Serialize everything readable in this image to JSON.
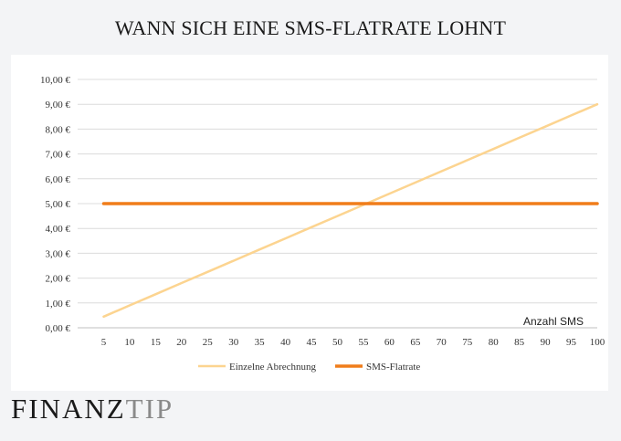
{
  "title": "WANN SICH EINE SMS-FLATRATE LOHNT",
  "brand": {
    "part1": "FINANZ",
    "part2": "TIP"
  },
  "chart_data": {
    "type": "line",
    "xlabel": "Anzahl SMS",
    "ylabel": "",
    "x": [
      5,
      10,
      15,
      20,
      25,
      30,
      35,
      40,
      45,
      50,
      55,
      60,
      65,
      70,
      75,
      80,
      85,
      90,
      95,
      100
    ],
    "xlim": [
      5,
      100
    ],
    "ylim": [
      0,
      10
    ],
    "yticks": [
      "0,00 €",
      "1,00 €",
      "2,00 €",
      "3,00 €",
      "4,00 €",
      "5,00 €",
      "6,00 €",
      "7,00 €",
      "8,00 €",
      "9,00 €",
      "10,00 €"
    ],
    "grid": true,
    "legend_position": "bottom",
    "series": [
      {
        "name": "Einzelne Abrechnung",
        "color": "#fcd490",
        "values": [
          0.45,
          0.9,
          1.35,
          1.8,
          2.25,
          2.7,
          3.15,
          3.6,
          4.05,
          4.5,
          4.95,
          5.4,
          5.85,
          6.3,
          6.75,
          7.2,
          7.65,
          8.1,
          8.55,
          9.0
        ]
      },
      {
        "name": "SMS-Flatrate",
        "color": "#f07d1a",
        "values": [
          5,
          5,
          5,
          5,
          5,
          5,
          5,
          5,
          5,
          5,
          5,
          5,
          5,
          5,
          5,
          5,
          5,
          5,
          5,
          5
        ]
      }
    ]
  }
}
